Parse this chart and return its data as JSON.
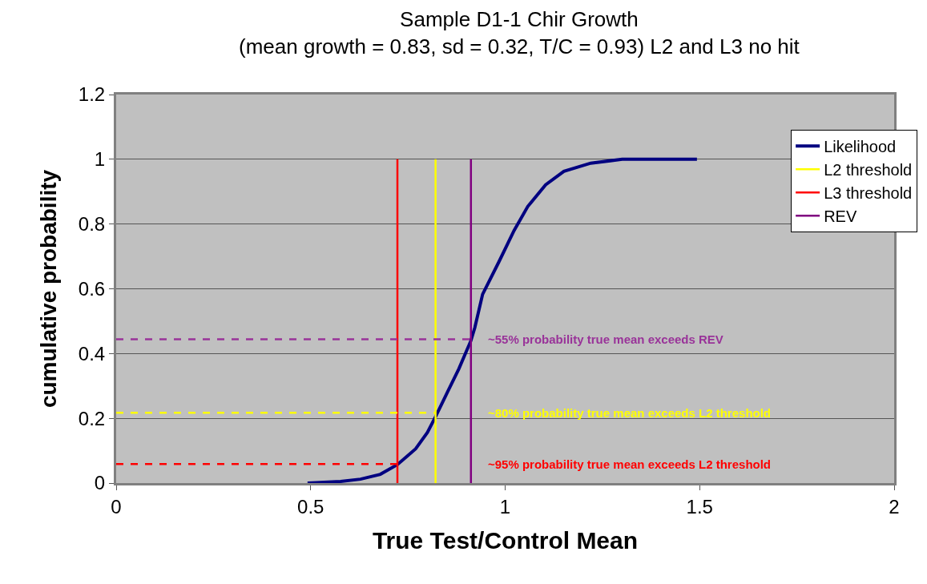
{
  "chart_data": {
    "type": "line",
    "title": "Sample D1-1 Chir Growth\n(mean growth = 0.83, sd = 0.32, T/C = 0.93) L2 and L3 no hit",
    "xlabel": "True Test/Control Mean",
    "ylabel": "cumulative probability",
    "series": [
      {
        "name": "Likelihood",
        "color": "#000080",
        "x": [
          0.492,
          0.577,
          0.628,
          0.679,
          0.723,
          0.77,
          0.8,
          0.821,
          0.851,
          0.881,
          0.912,
          0.922,
          0.942,
          0.983,
          1.023,
          1.058,
          1.104,
          1.151,
          1.22,
          1.301,
          1.493
        ],
        "values": [
          0,
          0.005,
          0.012,
          0.027,
          0.057,
          0.106,
          0.156,
          0.205,
          0.279,
          0.353,
          0.44,
          0.48,
          0.583,
          0.681,
          0.78,
          0.854,
          0.921,
          0.963,
          0.988,
          1,
          1
        ]
      },
      {
        "name": "L2 threshold",
        "color": "#ffff00",
        "x": [
          0.821,
          0.821
        ],
        "values": [
          0,
          1
        ]
      },
      {
        "name": "L3 threshold",
        "color": "#ff0000",
        "x": [
          0.723,
          0.723
        ],
        "values": [
          0,
          1
        ]
      },
      {
        "name": "REV",
        "color": "#800080",
        "x": [
          0.912,
          0.912
        ],
        "values": [
          0,
          1
        ]
      },
      {
        "color": "#993399",
        "line_style": "dashed",
        "x": [
          0,
          0.912
        ],
        "values": [
          0.444,
          0.444
        ]
      },
      {
        "color": "#ffff00",
        "line_style": "dashed",
        "x": [
          0,
          0.821
        ],
        "values": [
          0.217,
          0.217
        ]
      },
      {
        "color": "#ff0000",
        "line_style": "dashed",
        "x": [
          0,
          0.723
        ],
        "values": [
          0.059,
          0.059
        ]
      }
    ],
    "annotations": [
      "~55% probability true mean exceeds REV",
      "~80% probability true mean exceeds L2 threshold",
      "~95% probability true mean exceeds L2 threshold"
    ],
    "xlim": [
      0,
      2
    ],
    "xticks": [
      0,
      0.5,
      1,
      1.5,
      2
    ],
    "ylim": [
      0,
      1.2
    ],
    "yticks": [
      0,
      0.2,
      0.4,
      0.6,
      0.8,
      1,
      1.2
    ],
    "grid": "y",
    "legend": "top right",
    "marker": "none"
  }
}
